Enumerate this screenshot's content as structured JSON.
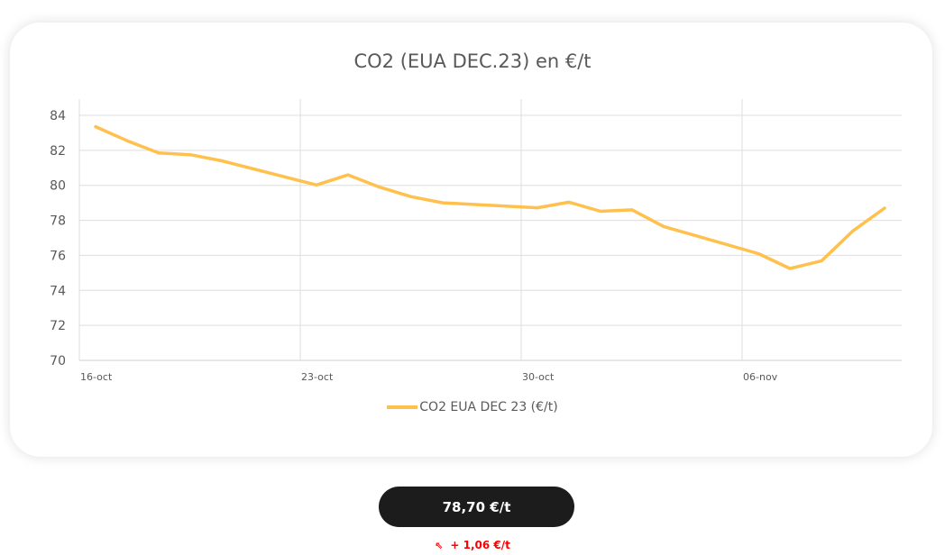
{
  "card": {
    "title": "CO2 (EUA DEC.23) en €/t"
  },
  "chart_data": {
    "type": "line",
    "title": "CO2 (EUA DEC.23) en €/t",
    "xlabel": "",
    "ylabel": "",
    "ylim": [
      70,
      84
    ],
    "yticks": [
      70,
      72,
      74,
      76,
      78,
      80,
      82,
      84
    ],
    "x_tick_labels": [
      "16-oct",
      "23-oct",
      "30-oct",
      "06-nov"
    ],
    "x": [
      "16-oct",
      "17-oct",
      "18-oct",
      "19-oct",
      "20-oct",
      "23-oct",
      "24-oct",
      "25-oct",
      "26-oct",
      "27-oct",
      "30-oct",
      "31-oct",
      "01-nov",
      "02-nov",
      "03-nov",
      "06-nov",
      "07-nov",
      "08-nov",
      "09-nov",
      "10-nov"
    ],
    "series": [
      {
        "name": "CO2 EUA DEC 23 (€/t)",
        "color": "#ffc04d",
        "values": [
          83.35,
          82.55,
          81.85,
          81.75,
          81.4,
          80.02,
          80.6,
          79.9,
          79.35,
          79.0,
          78.72,
          79.04,
          78.52,
          78.6,
          77.65,
          76.1,
          75.25,
          75.68,
          77.4,
          78.7
        ]
      }
    ],
    "grid": true,
    "legend_position": "bottom"
  },
  "legend": {
    "label": "CO2 EUA DEC 23 (€/t)"
  },
  "price": {
    "value": "78,70 €/t"
  },
  "change": {
    "icon": "arrow-up-left-icon",
    "value": "+ 1,06 €/t",
    "color": "#ff0000"
  }
}
